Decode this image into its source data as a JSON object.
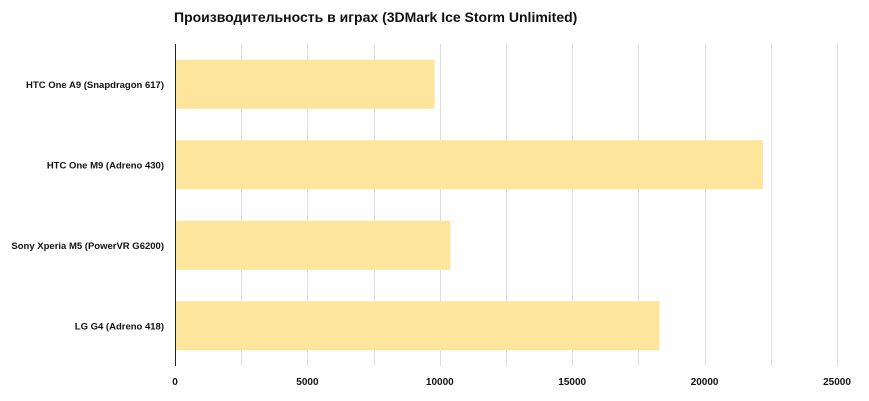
{
  "chart_data": {
    "type": "bar",
    "orientation": "horizontal",
    "title": "Производительность в играх (3DMark Ice Storm Unlimited)",
    "xlabel": "",
    "ylabel": "",
    "xlim": [
      0,
      25000
    ],
    "ticks": [
      0,
      5000,
      10000,
      15000,
      20000,
      25000
    ],
    "tick_labels": [
      "0",
      "5000",
      "10000",
      "15000",
      "20000",
      "25000"
    ],
    "minor_grid_step": 2500,
    "grid": true,
    "legend": "none",
    "categories": [
      "HTC One A9 (Snapdragon 617)",
      "HTC One M9 (Adreno 430)",
      "Sony Xperia M5 (PowerVR G6200)",
      "LG G4 (Adreno 418)"
    ],
    "values": [
      9800,
      22200,
      10400,
      18300
    ],
    "colors": {
      "bar": "#fde59c",
      "grid": "#dddddd",
      "axis": "#222222"
    }
  }
}
